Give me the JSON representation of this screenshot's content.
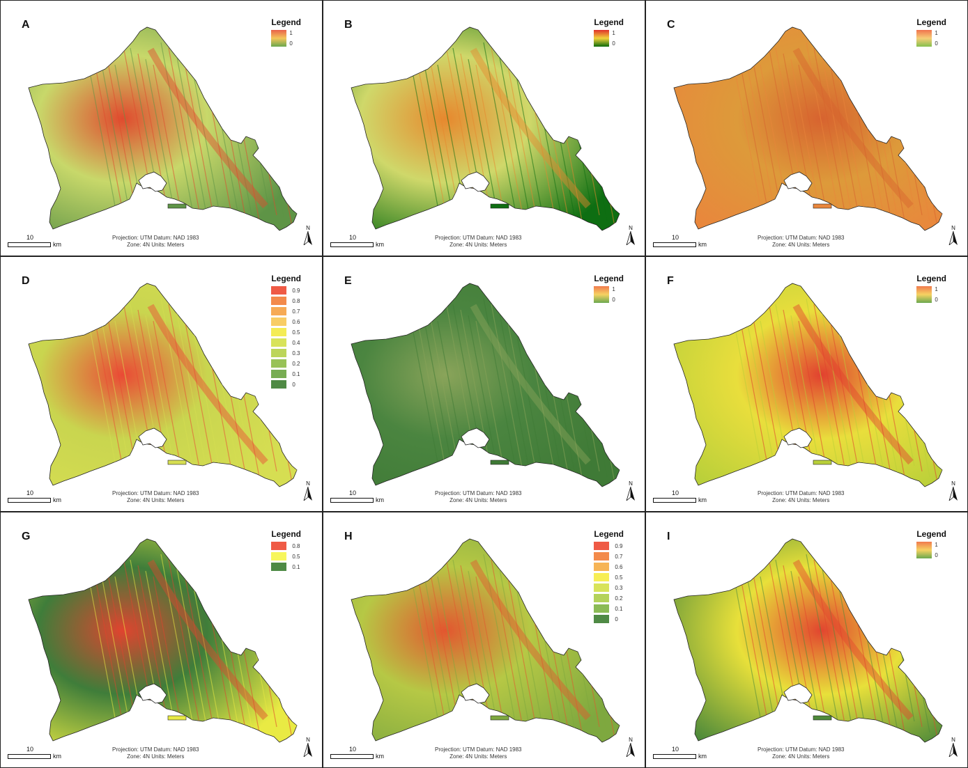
{
  "panels": [
    {
      "letter": "A",
      "legend": {
        "title": "Legend",
        "type": "gradient",
        "max": "1",
        "min": "0",
        "colors": [
          "#e8614a",
          "#f4c55b",
          "#6aa84f"
        ]
      },
      "map_colors": {
        "base": "#5e9446",
        "mid": "#c8d86a",
        "hot": "#e04a2e"
      }
    },
    {
      "letter": "B",
      "legend": {
        "title": "Legend",
        "type": "gradient",
        "max": "1",
        "min": "0",
        "colors": [
          "#e0302a",
          "#f1d33b",
          "#0b6b0b"
        ]
      },
      "map_colors": {
        "base": "#0e6e12",
        "mid": "#cfd86a",
        "hot": "#e7882e"
      }
    },
    {
      "letter": "C",
      "legend": {
        "title": "Legend",
        "type": "gradient",
        "max": "1",
        "min": "0",
        "colors": [
          "#f0734d",
          "#f6ce78",
          "#86c04e"
        ]
      },
      "map_colors": {
        "base": "#e9863c",
        "mid": "#dd9a3a",
        "hot": "#d7632f"
      }
    },
    {
      "letter": "D",
      "legend": {
        "title": "Legend",
        "type": "classes",
        "classes": [
          {
            "label": "0.9",
            "color": "#ef5a45"
          },
          {
            "label": "0.8",
            "color": "#f38a4b"
          },
          {
            "label": "0.7",
            "color": "#f6aa55"
          },
          {
            "label": "0.6",
            "color": "#f8cd65"
          },
          {
            "label": "0.5",
            "color": "#f4ec55"
          },
          {
            "label": "0.4",
            "color": "#d8e35a"
          },
          {
            "label": "0.3",
            "color": "#bcd55a"
          },
          {
            "label": "0.2",
            "color": "#98c257"
          },
          {
            "label": "0.1",
            "color": "#78ad53"
          },
          {
            "label": "0",
            "color": "#4f8a45"
          }
        ]
      },
      "map_colors": {
        "base": "#d6de52",
        "mid": "#c9d54f",
        "hot": "#ea4a35"
      }
    },
    {
      "letter": "E",
      "legend": {
        "title": "Legend",
        "type": "gradient",
        "max": "1",
        "min": "0",
        "colors": [
          "#f07a4e",
          "#f6d262",
          "#6aa84f"
        ]
      },
      "map_colors": {
        "base": "#3f7a36",
        "mid": "#4b8540",
        "hot": "#8aa45a"
      }
    },
    {
      "letter": "F",
      "legend": {
        "title": "Legend",
        "type": "gradient",
        "max": "1",
        "min": "0",
        "colors": [
          "#f07a4e",
          "#f6d262",
          "#6aa84f"
        ]
      },
      "map_colors": {
        "base": "#b8cf3a",
        "mid": "#e9de3c",
        "hot": "#e2402f"
      }
    },
    {
      "letter": "G",
      "legend": {
        "title": "Legend",
        "type": "classes",
        "classes": [
          {
            "label": "0.8",
            "color": "#ef5a45"
          },
          {
            "label": "0.5",
            "color": "#f7f65c"
          },
          {
            "label": "0.1",
            "color": "#4e8a45"
          }
        ]
      },
      "map_colors": {
        "base": "#e9ea44",
        "mid": "#3f7d3a",
        "hot": "#e0442f"
      }
    },
    {
      "letter": "H",
      "legend": {
        "title": "Legend",
        "type": "classes",
        "classes": [
          {
            "label": "0.9",
            "color": "#ef5a45"
          },
          {
            "label": "0.7",
            "color": "#f38a4b"
          },
          {
            "label": "0.6",
            "color": "#f6b455"
          },
          {
            "label": "0.5",
            "color": "#f7ee55"
          },
          {
            "label": "0.3",
            "color": "#d8e35a"
          },
          {
            "label": "0.2",
            "color": "#b4d25a"
          },
          {
            "label": "0.1",
            "color": "#8bbb55"
          },
          {
            "label": "0",
            "color": "#4f8a45"
          }
        ]
      },
      "map_colors": {
        "base": "#7ea83f",
        "mid": "#b6c845",
        "hot": "#e3562f"
      }
    },
    {
      "letter": "I",
      "legend": {
        "title": "Legend",
        "type": "gradient",
        "max": "1",
        "min": "0",
        "colors": [
          "#f07a4e",
          "#f6d262",
          "#6aa84f"
        ]
      },
      "map_colors": {
        "base": "#4e8a3a",
        "mid": "#e8e03a",
        "hot": "#e2452f"
      }
    }
  ],
  "footer": {
    "scale_value": "10",
    "scale_unit": "km",
    "projection_line1": "Projection: UTM    Datum: NAD 1983",
    "projection_line2": "Zone: 4N   Units: Meters",
    "north_label": "N"
  }
}
